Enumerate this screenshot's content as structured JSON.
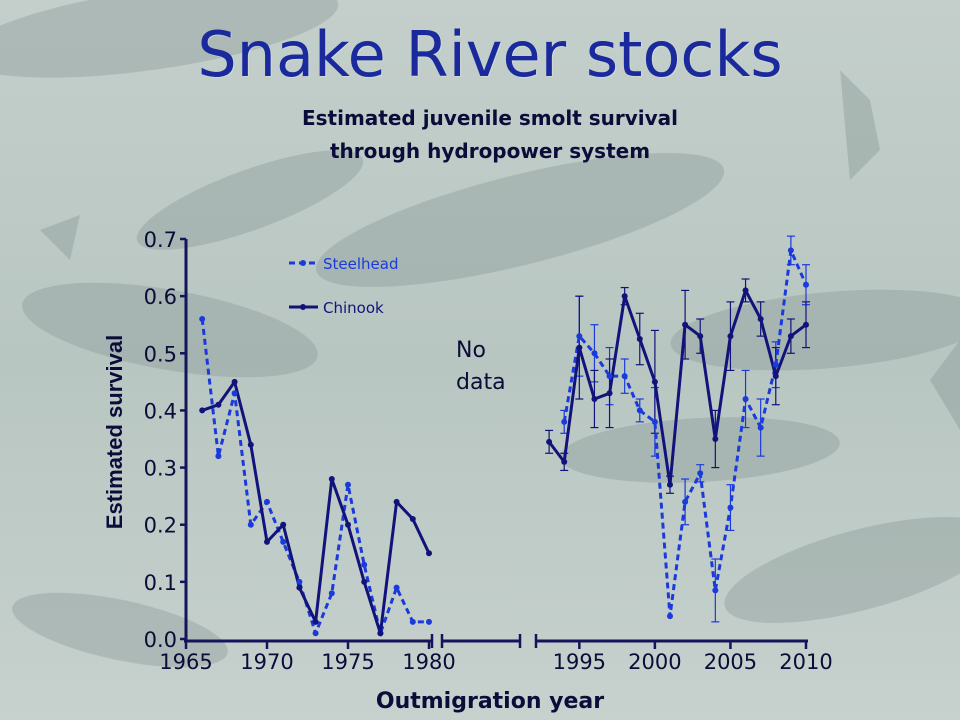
{
  "slide": {
    "title": "Snake River stocks"
  },
  "colors": {
    "steelhead": "#1a3adb",
    "chinook": "#12137a",
    "axis": "#14145a",
    "text": "#0c0c3a"
  },
  "chart_data": {
    "type": "line",
    "title": [
      "Estimated juvenile smolt survival",
      "through hydropower system"
    ],
    "xlabel": "Outmigration year",
    "ylabel": "Estimated survival",
    "ylim": [
      0,
      0.7
    ],
    "yticks": [
      "0.0",
      "0.1",
      "0.2",
      "0.3",
      "0.4",
      "0.5",
      "0.6",
      "0.7"
    ],
    "xticks_left": [
      1965,
      1970,
      1975,
      1980
    ],
    "xticks_right": [
      1995,
      2000,
      2005,
      2010
    ],
    "x_segments": [
      [
        1965,
        1980
      ],
      [
        1992,
        2010
      ]
    ],
    "annotation": [
      "No",
      "data"
    ],
    "grid": false,
    "legend": "top-left",
    "series": [
      {
        "name": "Steelhead",
        "style": "dashed",
        "segments": [
          {
            "x": [
              1966,
              1967,
              1968,
              1969,
              1970,
              1971,
              1972,
              1973,
              1974,
              1975,
              1976,
              1977,
              1978,
              1979,
              1980
            ],
            "y": [
              0.56,
              0.32,
              0.43,
              0.2,
              0.24,
              0.17,
              0.1,
              0.01,
              0.08,
              0.27,
              0.13,
              0.01,
              0.09,
              0.03,
              0.03
            ]
          },
          {
            "x": [
              1994,
              1995,
              1996,
              1997,
              1998,
              1999,
              2000,
              2001,
              2002,
              2003,
              2004,
              2005,
              2006,
              2007,
              2008,
              2009,
              2010
            ],
            "y": [
              0.38,
              0.53,
              0.5,
              0.46,
              0.46,
              0.4,
              0.38,
              0.04,
              0.24,
              0.29,
              0.085,
              0.23,
              0.42,
              0.37,
              0.48,
              0.68,
              0.62
            ],
            "err": [
              0.02,
              0.07,
              0.05,
              0.05,
              0.03,
              0.02,
              0.06,
              0.0,
              0.04,
              0.015,
              0.055,
              0.04,
              0.05,
              0.05,
              0.04,
              0.025,
              0.035
            ]
          }
        ]
      },
      {
        "name": "Chinook",
        "style": "solid",
        "segments": [
          {
            "x": [
              1966,
              1967,
              1968,
              1969,
              1970,
              1971,
              1972,
              1973,
              1974,
              1975,
              1976,
              1977,
              1978,
              1979,
              1980
            ],
            "y": [
              0.4,
              0.41,
              0.45,
              0.34,
              0.17,
              0.2,
              0.09,
              0.03,
              0.28,
              0.2,
              0.1,
              0.01,
              0.24,
              0.21,
              0.15
            ]
          },
          {
            "x": [
              1993,
              1994,
              1995,
              1996,
              1997,
              1998,
              1999,
              2000,
              2001,
              2002,
              2003,
              2004,
              2005,
              2006,
              2007,
              2008,
              2009,
              2010
            ],
            "y": [
              0.345,
              0.31,
              0.51,
              0.42,
              0.43,
              0.6,
              0.525,
              0.45,
              0.27,
              0.55,
              0.53,
              0.35,
              0.53,
              0.61,
              0.56,
              0.46,
              0.53,
              0.55
            ],
            "err": [
              0.02,
              0.015,
              0.09,
              0.05,
              0.06,
              0.015,
              0.045,
              0.09,
              0.015,
              0.06,
              0.03,
              0.05,
              0.06,
              0.02,
              0.03,
              0.05,
              0.03,
              0.04
            ]
          }
        ]
      }
    ]
  }
}
